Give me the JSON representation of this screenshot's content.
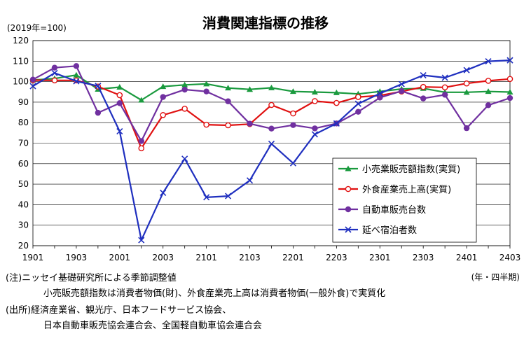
{
  "chart_data": {
    "type": "line",
    "title": "消費関連指標の推移",
    "unit_label": "(2019年=100)",
    "period_label": "(年・四半期)",
    "ylim": [
      20,
      120
    ],
    "yticks": [
      20,
      30,
      40,
      50,
      60,
      70,
      80,
      90,
      100,
      110,
      120
    ],
    "x": [
      "1901",
      "1902",
      "1903",
      "1904",
      "2001",
      "2002",
      "2003",
      "2004",
      "2101",
      "2102",
      "2103",
      "2104",
      "2201",
      "2202",
      "2203",
      "2204",
      "2301",
      "2302",
      "2303",
      "2304",
      "2401",
      "2402",
      "2403"
    ],
    "xtick_labels": [
      "1901",
      "1903",
      "2001",
      "2003",
      "2101",
      "2103",
      "2201",
      "2203",
      "2301",
      "2303",
      "2401",
      "2403"
    ],
    "grid": true,
    "legend_position": "right",
    "series": [
      {
        "name": "小売業販売額指数(実質)",
        "color": "#1a9a3e",
        "marker": "triangle",
        "values": [
          100.8,
          101.5,
          103.2,
          96.3,
          97.3,
          91.0,
          97.6,
          98.4,
          98.9,
          96.9,
          96.2,
          97.0,
          95.2,
          94.9,
          94.6,
          94.0,
          95.2,
          96.4,
          96.7,
          94.8,
          94.8,
          95.2,
          94.9
        ]
      },
      {
        "name": "外食産業売上高(実質)",
        "color": "#e01010",
        "marker": "circle-open",
        "values": [
          100.7,
          100.6,
          100.6,
          97.6,
          93.4,
          67.5,
          83.7,
          86.8,
          79.0,
          78.7,
          79.3,
          88.6,
          84.5,
          90.5,
          89.6,
          92.5,
          93.2,
          95.2,
          97.4,
          97.2,
          99.1,
          100.4,
          101.3
        ]
      },
      {
        "name": "自動車販売台数",
        "color": "#7030a0",
        "marker": "circle",
        "values": [
          101.0,
          106.8,
          107.6,
          84.8,
          89.5,
          71.0,
          92.5,
          96.1,
          95.2,
          90.4,
          79.5,
          77.1,
          78.8,
          77.2,
          79.6,
          85.3,
          92.2,
          95.4,
          91.8,
          93.6,
          77.3,
          88.5,
          92.0
        ]
      },
      {
        "name": "延べ宿泊者数",
        "color": "#1f2fbf",
        "marker": "x",
        "values": [
          97.8,
          104.2,
          100.2,
          97.9,
          75.8,
          22.7,
          45.8,
          62.4,
          43.6,
          44.2,
          51.8,
          69.7,
          60.2,
          74.3,
          79.6,
          89.2,
          94.2,
          98.8,
          103.1,
          101.9,
          105.6,
          109.9,
          110.4
        ]
      }
    ]
  },
  "notes": {
    "line1": "(注)ニッセイ基礎研究所による季節調整値",
    "line2": "小売販売額指数は消費者物価(財)、外食産業売上高は消費者物価(一般外食)で実質化",
    "line3": "(出所)経済産業省、観光庁、日本フードサービス協会、",
    "line4": "日本自動車販売協会連合会、全国軽自動車協会連合会"
  }
}
